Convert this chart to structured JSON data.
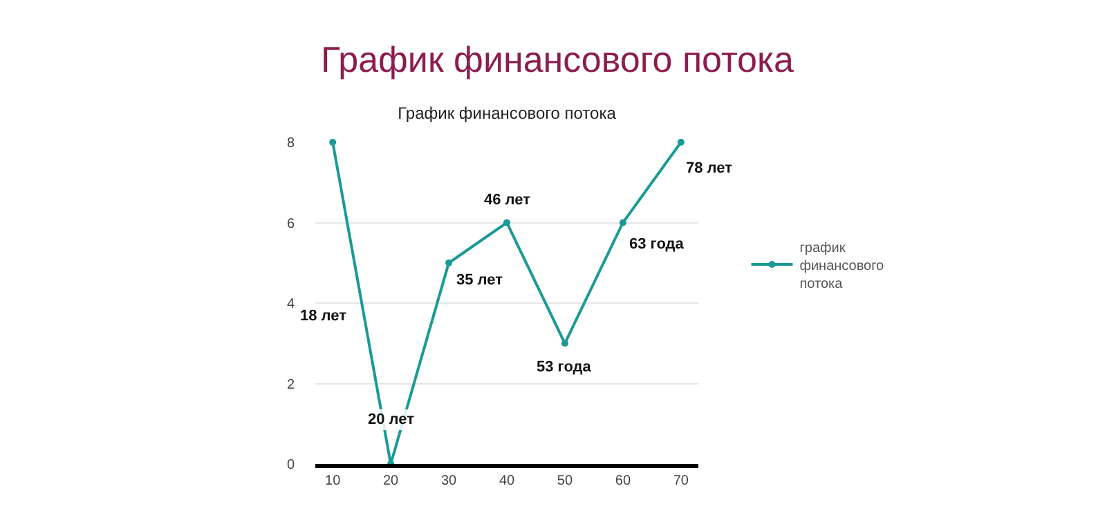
{
  "chart_data": {
    "type": "line",
    "title": "График финансового потока",
    "subtitle": "График финансового потока",
    "x": [
      10,
      20,
      30,
      40,
      50,
      60,
      70
    ],
    "series": [
      {
        "name": "график финансового потока",
        "color": "#1a9a96",
        "values": [
          8,
          0,
          5,
          6,
          3,
          6,
          8
        ]
      }
    ],
    "annotations": [
      "18 лет",
      {
        "text": "20 лет",
        "x": 20,
        "y": 0
      },
      {
        "text": "35 лет",
        "x": 30,
        "y": 5
      },
      {
        "text": "46 лет",
        "x": 40,
        "y": 6
      },
      {
        "text": "53 года",
        "x": 50,
        "y": 3
      },
      {
        "text": "63 года",
        "x": 60,
        "y": 6
      },
      {
        "text": "78 лет",
        "x": 70,
        "y": 8
      }
    ],
    "xlim": [
      7,
      73
    ],
    "xticks": [
      10,
      20,
      30,
      40,
      50,
      60,
      70
    ],
    "ylim": [
      0,
      8
    ],
    "yticks": [
      0,
      2,
      4,
      6,
      8
    ],
    "grid": "y",
    "legend": "right",
    "marker": "circle",
    "line_style": "solid"
  }
}
